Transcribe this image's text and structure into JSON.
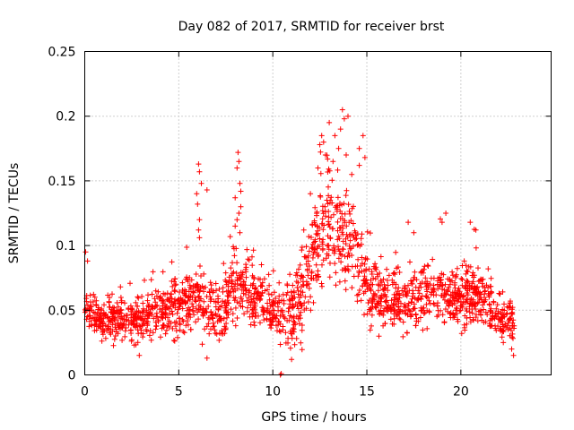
{
  "chart_data": {
    "type": "scatter",
    "title": "Day 082 of 2017, SRMTID for receiver brst",
    "xlabel": "GPS time / hours",
    "ylabel": "SRMTID / TECUs",
    "xlim": [
      0,
      24.8
    ],
    "ylim": [
      0,
      0.25
    ],
    "x_ticks": [
      0,
      5,
      10,
      15,
      20
    ],
    "x_tick_labels": [
      "0",
      "5",
      "10",
      "15",
      "20"
    ],
    "y_ticks": [
      0,
      0.05,
      0.1,
      0.15,
      0.2,
      0.25
    ],
    "y_tick_labels": [
      "0",
      "0.05",
      "0.1",
      "0.15",
      "0.2",
      "0.25"
    ],
    "grid": true,
    "marker": "plus",
    "color": "#ff0000",
    "profile": [
      {
        "x": 0.0,
        "y": 0.05
      },
      {
        "x": 0.5,
        "y": 0.045
      },
      {
        "x": 1.0,
        "y": 0.04
      },
      {
        "x": 1.5,
        "y": 0.042
      },
      {
        "x": 2.0,
        "y": 0.04
      },
      {
        "x": 2.5,
        "y": 0.042
      },
      {
        "x": 3.0,
        "y": 0.045
      },
      {
        "x": 3.5,
        "y": 0.046
      },
      {
        "x": 4.0,
        "y": 0.048
      },
      {
        "x": 4.5,
        "y": 0.052
      },
      {
        "x": 5.0,
        "y": 0.055
      },
      {
        "x": 5.5,
        "y": 0.055
      },
      {
        "x": 6.0,
        "y": 0.06
      },
      {
        "x": 6.5,
        "y": 0.05
      },
      {
        "x": 7.0,
        "y": 0.048
      },
      {
        "x": 7.5,
        "y": 0.055
      },
      {
        "x": 8.0,
        "y": 0.07
      },
      {
        "x": 8.5,
        "y": 0.065
      },
      {
        "x": 9.0,
        "y": 0.06
      },
      {
        "x": 9.5,
        "y": 0.058
      },
      {
        "x": 10.0,
        "y": 0.05
      },
      {
        "x": 10.5,
        "y": 0.045
      },
      {
        "x": 11.0,
        "y": 0.048
      },
      {
        "x": 11.5,
        "y": 0.06
      },
      {
        "x": 12.0,
        "y": 0.08
      },
      {
        "x": 12.5,
        "y": 0.11
      },
      {
        "x": 13.0,
        "y": 0.12
      },
      {
        "x": 13.5,
        "y": 0.11
      },
      {
        "x": 14.0,
        "y": 0.095
      },
      {
        "x": 14.5,
        "y": 0.09
      },
      {
        "x": 15.0,
        "y": 0.065
      },
      {
        "x": 15.5,
        "y": 0.06
      },
      {
        "x": 16.0,
        "y": 0.06
      },
      {
        "x": 16.5,
        "y": 0.058
      },
      {
        "x": 17.0,
        "y": 0.055
      },
      {
        "x": 17.5,
        "y": 0.06
      },
      {
        "x": 18.0,
        "y": 0.06
      },
      {
        "x": 18.5,
        "y": 0.062
      },
      {
        "x": 19.0,
        "y": 0.065
      },
      {
        "x": 19.5,
        "y": 0.062
      },
      {
        "x": 20.0,
        "y": 0.06
      },
      {
        "x": 20.5,
        "y": 0.062
      },
      {
        "x": 21.0,
        "y": 0.06
      },
      {
        "x": 21.5,
        "y": 0.055
      },
      {
        "x": 22.0,
        "y": 0.045
      },
      {
        "x": 22.5,
        "y": 0.042
      },
      {
        "x": 22.8,
        "y": 0.04
      }
    ],
    "spread": [
      {
        "x": 0.0,
        "s": 0.012
      },
      {
        "x": 6.0,
        "s": 0.018
      },
      {
        "x": 8.0,
        "s": 0.022
      },
      {
        "x": 10.0,
        "s": 0.015
      },
      {
        "x": 12.0,
        "s": 0.03
      },
      {
        "x": 13.0,
        "s": 0.04
      },
      {
        "x": 14.5,
        "s": 0.028
      },
      {
        "x": 15.0,
        "s": 0.02
      },
      {
        "x": 19.0,
        "s": 0.02
      },
      {
        "x": 22.8,
        "s": 0.013
      }
    ],
    "x_range": [
      0.0,
      22.85
    ],
    "point_count": 1900,
    "highlights": [
      {
        "x": 0.05,
        "y": 0.095
      },
      {
        "x": 0.15,
        "y": 0.088
      },
      {
        "x": 6.05,
        "y": 0.163
      },
      {
        "x": 6.1,
        "y": 0.157
      },
      {
        "x": 6.2,
        "y": 0.148
      },
      {
        "x": 6.5,
        "y": 0.143
      },
      {
        "x": 5.95,
        "y": 0.14
      },
      {
        "x": 6.0,
        "y": 0.132
      },
      {
        "x": 6.1,
        "y": 0.12
      },
      {
        "x": 6.05,
        "y": 0.112
      },
      {
        "x": 6.1,
        "y": 0.106
      },
      {
        "x": 8.15,
        "y": 0.172
      },
      {
        "x": 8.2,
        "y": 0.165
      },
      {
        "x": 8.1,
        "y": 0.16
      },
      {
        "x": 8.25,
        "y": 0.148
      },
      {
        "x": 8.3,
        "y": 0.142
      },
      {
        "x": 8.0,
        "y": 0.137
      },
      {
        "x": 8.3,
        "y": 0.13
      },
      {
        "x": 8.2,
        "y": 0.125
      },
      {
        "x": 8.1,
        "y": 0.12
      },
      {
        "x": 8.0,
        "y": 0.115
      },
      {
        "x": 8.25,
        "y": 0.11
      },
      {
        "x": 12.0,
        "y": 0.14
      },
      {
        "x": 12.5,
        "y": 0.178
      },
      {
        "x": 12.6,
        "y": 0.185
      },
      {
        "x": 12.7,
        "y": 0.18
      },
      {
        "x": 13.0,
        "y": 0.195
      },
      {
        "x": 13.3,
        "y": 0.185
      },
      {
        "x": 13.5,
        "y": 0.175
      },
      {
        "x": 13.7,
        "y": 0.205
      },
      {
        "x": 13.8,
        "y": 0.198
      },
      {
        "x": 14.0,
        "y": 0.2
      },
      {
        "x": 13.6,
        "y": 0.19
      },
      {
        "x": 12.8,
        "y": 0.17
      },
      {
        "x": 12.4,
        "y": 0.16
      },
      {
        "x": 13.2,
        "y": 0.165
      },
      {
        "x": 13.9,
        "y": 0.17
      },
      {
        "x": 14.2,
        "y": 0.155
      },
      {
        "x": 14.6,
        "y": 0.175
      },
      {
        "x": 14.8,
        "y": 0.185
      },
      {
        "x": 14.9,
        "y": 0.168
      },
      {
        "x": 14.6,
        "y": 0.162
      },
      {
        "x": 17.2,
        "y": 0.118
      },
      {
        "x": 17.5,
        "y": 0.11
      },
      {
        "x": 19.2,
        "y": 0.125
      },
      {
        "x": 19.0,
        "y": 0.118
      },
      {
        "x": 20.5,
        "y": 0.118
      },
      {
        "x": 20.8,
        "y": 0.112
      },
      {
        "x": 10.4,
        "y": 0.0
      },
      {
        "x": 10.45,
        "y": 0.001
      },
      {
        "x": 22.8,
        "y": 0.015
      },
      {
        "x": 22.7,
        "y": 0.02
      },
      {
        "x": 2.9,
        "y": 0.015
      },
      {
        "x": 6.5,
        "y": 0.013
      },
      {
        "x": 11.0,
        "y": 0.012
      }
    ]
  }
}
